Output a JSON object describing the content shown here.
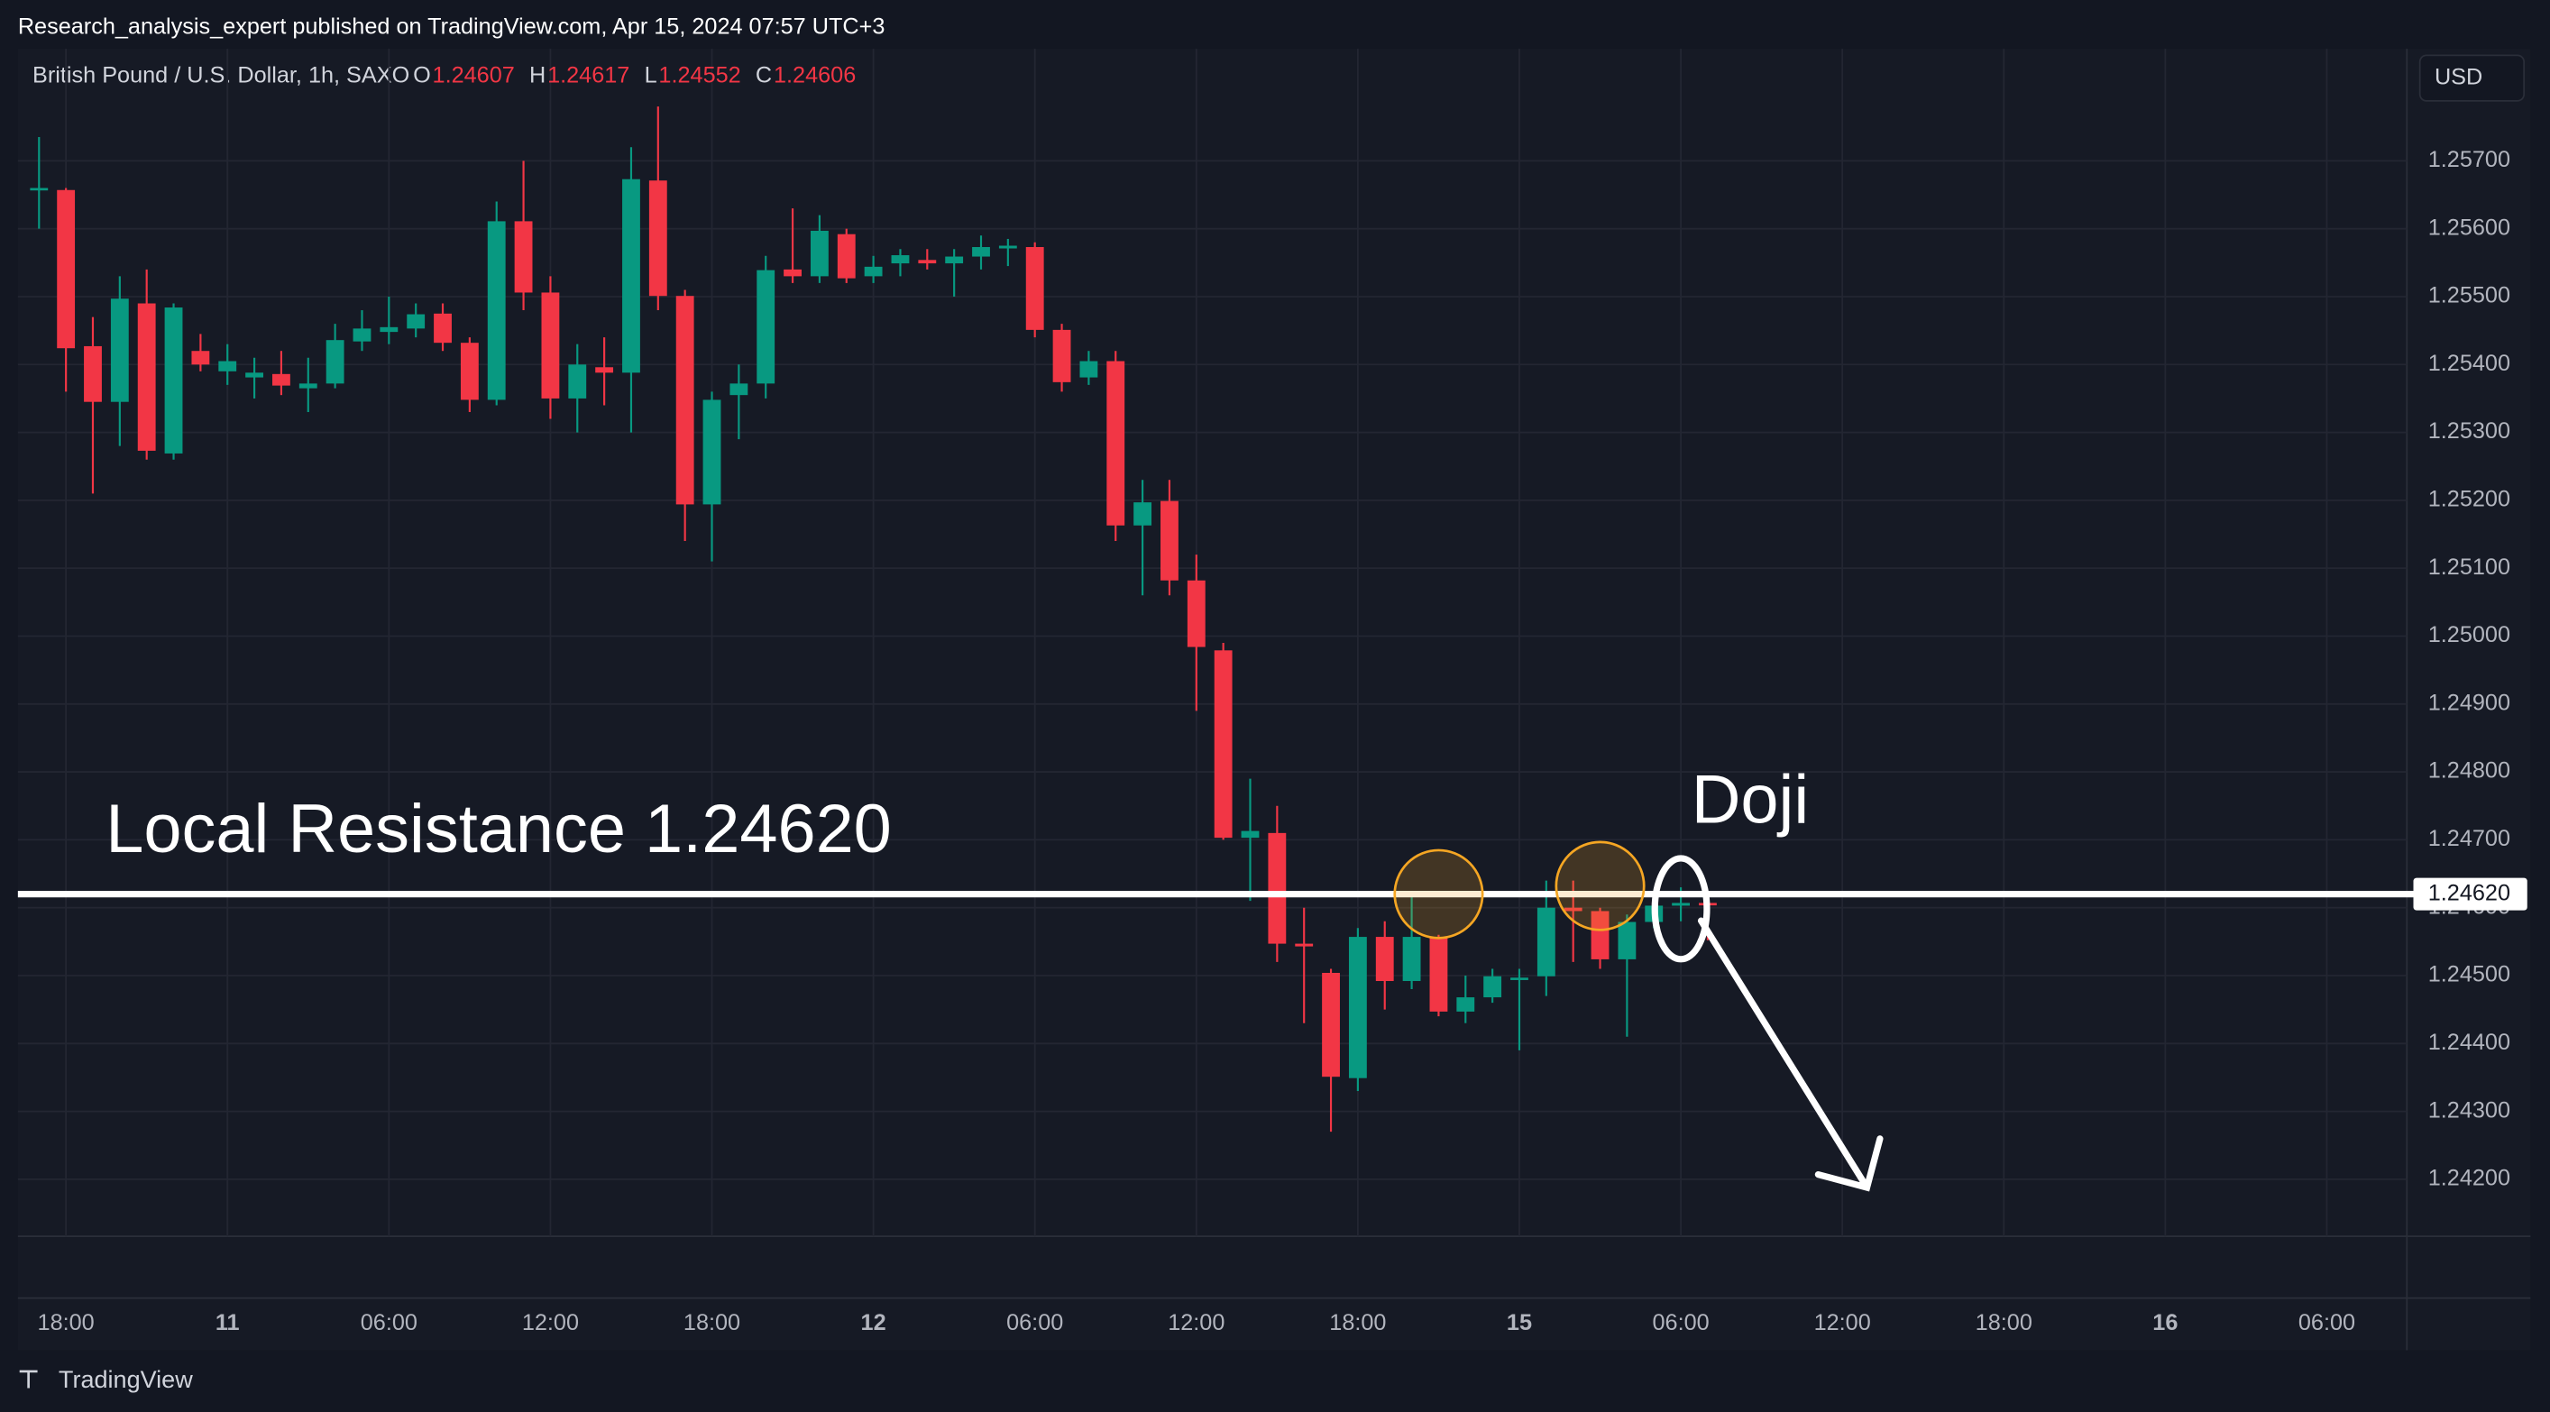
{
  "header": "Research_analysis_expert published on TradingView.com, Apr 15, 2024 07:57 UTC+3",
  "footer": "TradingView",
  "currency": "USD",
  "chart_data": {
    "type": "candlestick",
    "symbol": "British Pound / U.S. Dollar, 1h, SAXO",
    "legend_keys": [
      "O",
      "H",
      "L",
      "C"
    ],
    "up_color": "#089981",
    "down_color": "#f23645",
    "categories": [
      null,
      "18:00",
      null,
      null,
      null,
      null,
      null,
      "11",
      null,
      null,
      null,
      null,
      null,
      "06:00",
      null,
      null,
      null,
      null,
      null,
      "12:00",
      null,
      null,
      null,
      null,
      null,
      "18:00",
      null,
      null,
      null,
      null,
      null,
      "12",
      null,
      null,
      null,
      null,
      null,
      "06:00",
      null,
      null,
      null,
      null,
      null,
      "12:00",
      null,
      null,
      null,
      null,
      null,
      "18:00",
      null,
      null,
      null,
      null,
      null,
      "15",
      null,
      null,
      null,
      null,
      null,
      "06:00",
      null
    ],
    "future_x_labels": [
      "12:00",
      "18:00",
      "16",
      "06:00"
    ],
    "open": [
      1.25657,
      1.25657,
      1.25427,
      1.25345,
      1.2549,
      1.25269,
      1.2542,
      1.2539,
      1.25381,
      1.25386,
      1.25365,
      1.25372,
      1.25434,
      1.25448,
      1.25453,
      1.25475,
      1.25432,
      1.25348,
      1.25611,
      1.25506,
      1.2535,
      1.25396,
      1.25388,
      1.25671,
      1.25501,
      1.25194,
      1.25355,
      1.25372,
      1.2554,
      1.2553,
      1.25592,
      1.2553,
      1.25549,
      1.25554,
      1.25549,
      1.25559,
      1.25571,
      1.25573,
      1.25451,
      1.25381,
      1.25405,
      1.25163,
      1.25199,
      1.25082,
      1.24979,
      1.24703,
      1.2471,
      1.24547,
      1.24504,
      1.24349,
      1.24557,
      1.24492,
      1.24557,
      1.24447,
      1.24468,
      1.24495,
      1.24499,
      1.246,
      1.24595,
      1.24524,
      1.24579,
      1.24603,
      1.24607
    ],
    "high": [
      1.25735,
      1.2566,
      1.2547,
      1.2553,
      1.2554,
      1.2549,
      1.25445,
      1.2543,
      1.2541,
      1.2542,
      1.2541,
      1.2546,
      1.2548,
      1.255,
      1.2549,
      1.2549,
      1.2544,
      1.2564,
      1.257,
      1.2553,
      1.2543,
      1.2544,
      1.2572,
      1.2578,
      1.2551,
      1.2536,
      1.254,
      1.2556,
      1.2563,
      1.2562,
      1.256,
      1.2556,
      1.2557,
      1.2557,
      1.2557,
      1.2559,
      1.25585,
      1.2558,
      1.2546,
      1.2542,
      1.2542,
      1.2523,
      1.2523,
      1.2512,
      1.2499,
      1.2479,
      1.2475,
      1.246,
      1.2451,
      1.2457,
      1.2458,
      1.2462,
      1.2456,
      1.245,
      1.2451,
      1.2451,
      1.2464,
      1.2464,
      1.246,
      1.2459,
      1.2461,
      1.2463,
      1.24617
    ],
    "low": [
      1.256,
      1.2536,
      1.2521,
      1.2528,
      1.2526,
      1.2526,
      1.2539,
      1.2537,
      1.2535,
      1.25355,
      1.2533,
      1.25365,
      1.2542,
      1.2543,
      1.2544,
      1.2542,
      1.2533,
      1.2534,
      1.2548,
      1.2532,
      1.253,
      1.2534,
      1.253,
      1.2548,
      1.2514,
      1.2511,
      1.2529,
      1.2535,
      1.2552,
      1.2552,
      1.2552,
      1.2552,
      1.2553,
      1.2554,
      1.255,
      1.2554,
      1.25545,
      1.2544,
      1.2536,
      1.2537,
      1.2514,
      1.2506,
      1.2506,
      1.2489,
      1.247,
      1.2461,
      1.2452,
      1.2443,
      1.2427,
      1.2433,
      1.2445,
      1.2448,
      1.2444,
      1.2443,
      1.2446,
      1.2439,
      1.2447,
      1.2452,
      1.2451,
      1.2441,
      1.2457,
      1.2458,
      1.24552
    ],
    "close": [
      1.2566,
      1.25424,
      1.25345,
      1.25497,
      1.25273,
      1.25484,
      1.254,
      1.25405,
      1.25388,
      1.25369,
      1.25372,
      1.25436,
      1.25453,
      1.25455,
      1.25474,
      1.25432,
      1.25348,
      1.25611,
      1.25506,
      1.2535,
      1.254,
      1.25388,
      1.25673,
      1.25501,
      1.25194,
      1.25348,
      1.25372,
      1.25539,
      1.2553,
      1.25597,
      1.25527,
      1.25544,
      1.25561,
      1.25549,
      1.25559,
      1.25573,
      1.25575,
      1.25451,
      1.25374,
      1.25405,
      1.25163,
      1.25197,
      1.25082,
      1.24984,
      1.24703,
      1.24713,
      1.24547,
      1.24543,
      1.24351,
      1.24557,
      1.24492,
      1.24557,
      1.24447,
      1.24468,
      1.24499,
      1.24497,
      1.246,
      1.24595,
      1.24524,
      1.24579,
      1.24603,
      1.24607,
      1.24606
    ],
    "ylim": [
      1.24116,
      1.25865
    ],
    "yticks": [
      {
        "value": 1.257,
        "label": "1.25700"
      },
      {
        "value": 1.256,
        "label": "1.25600"
      },
      {
        "value": 1.255,
        "label": "1.25500"
      },
      {
        "value": 1.254,
        "label": "1.25400"
      },
      {
        "value": 1.253,
        "label": "1.25300"
      },
      {
        "value": 1.252,
        "label": "1.25200"
      },
      {
        "value": 1.251,
        "label": "1.25100"
      },
      {
        "value": 1.25,
        "label": "1.25000"
      },
      {
        "value": 1.249,
        "label": "1.24900"
      },
      {
        "value": 1.248,
        "label": "1.24800"
      },
      {
        "value": 1.247,
        "label": "1.24700"
      },
      {
        "value": 1.246,
        "label": "1.24600"
      },
      {
        "value": 1.245,
        "label": "1.24500"
      },
      {
        "value": 1.244,
        "label": "1.24400"
      },
      {
        "value": 1.243,
        "label": "1.24300"
      },
      {
        "value": 1.242,
        "label": "1.24200"
      }
    ],
    "grid": true,
    "resistance": {
      "value": 1.2462,
      "label": "1.24620",
      "annotation": "Local Resistance 1.24620"
    },
    "doji_annotation": "Doji"
  }
}
